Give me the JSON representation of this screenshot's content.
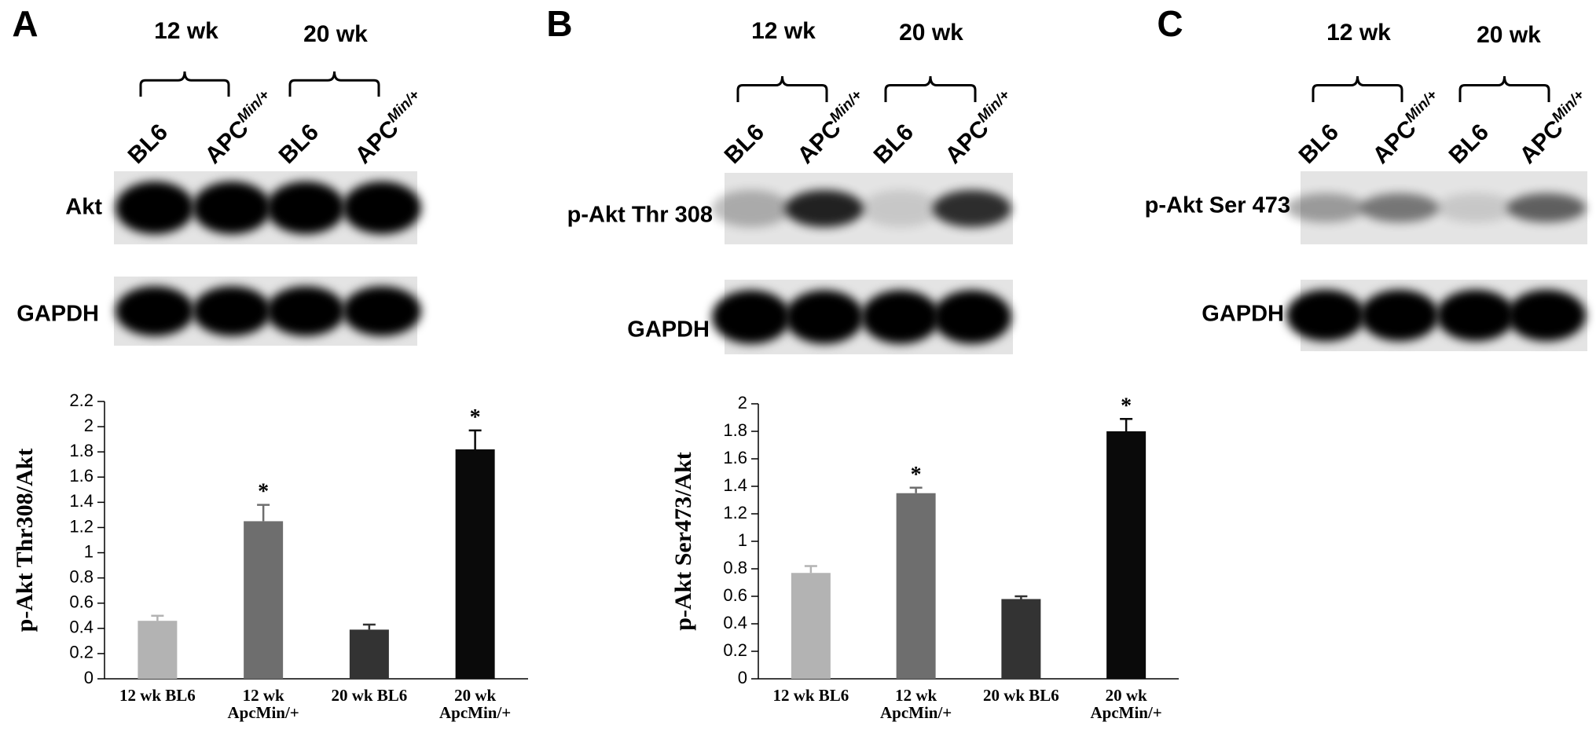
{
  "panels": [
    {
      "letter": "A",
      "groups": [
        "12 wk",
        "20 wk"
      ],
      "lanes": [
        {
          "name": "BL6"
        },
        {
          "name": "APC",
          "sup": "Min/+"
        },
        {
          "name": "BL6"
        },
        {
          "name": "APC",
          "sup": "Min/+"
        }
      ],
      "blots": [
        "Akt",
        "GAPDH"
      ]
    },
    {
      "letter": "B",
      "groups": [
        "12 wk",
        "20 wk"
      ],
      "lanes": [
        {
          "name": "BL6"
        },
        {
          "name": "APC",
          "sup": "Min/+"
        },
        {
          "name": "BL6"
        },
        {
          "name": "APC",
          "sup": "Min/+"
        }
      ],
      "blots": [
        "p-Akt Thr 308",
        "GAPDH"
      ]
    },
    {
      "letter": "C",
      "groups": [
        "12 wk",
        "20 wk"
      ],
      "lanes": [
        {
          "name": "BL6"
        },
        {
          "name": "APC",
          "sup": "Min/+"
        },
        {
          "name": "BL6"
        },
        {
          "name": "APC",
          "sup": "Min/+"
        }
      ],
      "blots": [
        "p-Akt Ser 473",
        "GAPDH"
      ]
    }
  ],
  "chart_data": [
    {
      "type": "bar",
      "ylabel": "p-Akt Thr308/Akt",
      "categories": [
        "12 wk BL6",
        "12 wk ApcMin/+",
        "20 wk BL6",
        "20 wk ApcMin/+"
      ],
      "values": [
        0.46,
        1.25,
        0.39,
        1.82
      ],
      "errors": [
        0.04,
        0.13,
        0.04,
        0.15
      ],
      "colors": [
        "#b3b3b3",
        "#6e6e6e",
        "#333333",
        "#0a0a0a"
      ],
      "annotations": [
        {
          "category": "12 wk ApcMin/+",
          "text": "*"
        },
        {
          "category": "20 wk ApcMin/+",
          "text": "*"
        }
      ],
      "ylim": [
        0,
        2.2
      ],
      "yticks": [
        0,
        0.2,
        0.4,
        0.6,
        0.8,
        1,
        1.2,
        1.4,
        1.6,
        1.8,
        2,
        2.2
      ]
    },
    {
      "type": "bar",
      "ylabel": "p-Akt Ser473/Akt",
      "categories": [
        "12 wk BL6",
        "12 wk ApcMin/+",
        "20 wk BL6",
        "20 wk ApcMin/+"
      ],
      "values": [
        0.77,
        1.35,
        0.58,
        1.8
      ],
      "errors": [
        0.05,
        0.04,
        0.02,
        0.09
      ],
      "colors": [
        "#b3b3b3",
        "#6e6e6e",
        "#333333",
        "#0a0a0a"
      ],
      "annotations": [
        {
          "category": "12 wk ApcMin/+",
          "text": "*"
        },
        {
          "category": "20 wk ApcMin/+",
          "text": "*"
        }
      ],
      "ylim": [
        0,
        2
      ],
      "yticks": [
        0,
        0.2,
        0.4,
        0.6,
        0.8,
        1,
        1.2,
        1.4,
        1.6,
        1.8,
        2
      ]
    }
  ]
}
